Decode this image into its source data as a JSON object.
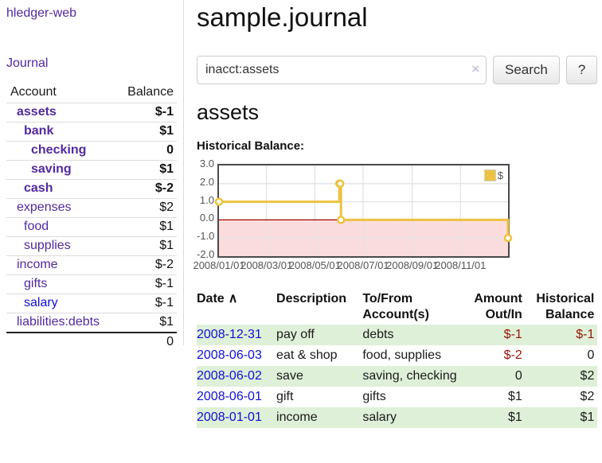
{
  "sidebar": {
    "brand": "hledger-web",
    "nav": {
      "journal": "Journal"
    },
    "table_headers": {
      "account": "Account",
      "balance": "Balance"
    },
    "accounts": [
      {
        "name": "assets",
        "indent": 1,
        "bold": true,
        "balance": "$-1",
        "neg": "strong"
      },
      {
        "name": "bank",
        "indent": 2,
        "bold": true,
        "balance": "$1"
      },
      {
        "name": "checking",
        "indent": 3,
        "bold": true,
        "balance": "0"
      },
      {
        "name": "saving",
        "indent": 3,
        "bold": true,
        "balance": "$1"
      },
      {
        "name": "cash",
        "indent": 2,
        "bold": true,
        "balance": "$-2",
        "neg": "strong"
      },
      {
        "name": "expenses",
        "indent": 1,
        "bold": false,
        "balance": "$2"
      },
      {
        "name": "food",
        "indent": 2,
        "bold": false,
        "balance": "$1"
      },
      {
        "name": "supplies",
        "indent": 2,
        "bold": false,
        "balance": "$1"
      },
      {
        "name": "income",
        "indent": 1,
        "bold": false,
        "balance": "$-2",
        "neg": "muted"
      },
      {
        "name": "gifts",
        "indent": 2,
        "bold": false,
        "balance": "$-1",
        "neg": "muted"
      },
      {
        "name": "salary",
        "indent": 2,
        "bold": false,
        "balance": "$-1",
        "neg": "muted",
        "link_color": "blue"
      },
      {
        "name": "liabilities:debts",
        "indent": 1,
        "bold": false,
        "balance": "$1"
      }
    ],
    "total": "0"
  },
  "header": {
    "title": "sample.journal"
  },
  "search": {
    "value": "inacct:assets",
    "clear_icon": "×",
    "button_label": "Search",
    "help_label": "?"
  },
  "account_page": {
    "heading": "assets",
    "chart_label": "Historical Balance:"
  },
  "chart_data": {
    "type": "line",
    "step": true,
    "title": "Historical Balance:",
    "legend": {
      "label": "$",
      "position": "top-right"
    },
    "series": [
      {
        "name": "$",
        "color": "#edc240",
        "points": [
          [
            "2008-01-01",
            1
          ],
          [
            "2008-06-01",
            2
          ],
          [
            "2008-06-02",
            2
          ],
          [
            "2008-06-03",
            0
          ],
          [
            "2008-12-31",
            -1
          ]
        ]
      }
    ],
    "x_range": [
      "2008-01-01",
      "2008-12-31"
    ],
    "x_tick_labels": [
      "2008/01/01",
      "2008/03/01",
      "2008/05/01",
      "2008/07/01",
      "2008/09/01",
      "2008/11/01"
    ],
    "y_ticks": [
      3.0,
      2.0,
      1.0,
      0.0,
      -1.0,
      -2.0
    ],
    "y_tick_labels": [
      "3.0",
      "2.0",
      "1.0",
      "0.0",
      "-1.0",
      "-2.0"
    ],
    "ylim": [
      -2,
      3
    ],
    "grid": true,
    "grid_color": "#e3e3e3",
    "negative_region": {
      "color": "#fbdcdc",
      "zero_line_color": "#a00000"
    }
  },
  "register": {
    "headers": {
      "date": "Date",
      "sort_icon": "∧",
      "description": "Description",
      "accounts": "To/From Account(s)",
      "amount": "Amount Out/In",
      "balance": "Historical Balance"
    },
    "rows": [
      {
        "date": "2008-12-31",
        "description": "pay off",
        "accounts": "debts",
        "amount": "$-1",
        "amount_neg": true,
        "balance": "$-1",
        "balance_neg": true
      },
      {
        "date": "2008-06-03",
        "description": "eat & shop",
        "accounts": "food, supplies",
        "amount": "$-2",
        "amount_neg": true,
        "balance": "0",
        "balance_neg": false
      },
      {
        "date": "2008-06-02",
        "description": "save",
        "accounts": "saving, checking",
        "amount": "0",
        "amount_neg": false,
        "balance": "$2",
        "balance_neg": false
      },
      {
        "date": "2008-06-01",
        "description": "gift",
        "accounts": "gifts",
        "amount": "$1",
        "amount_neg": false,
        "balance": "$2",
        "balance_neg": false
      },
      {
        "date": "2008-01-01",
        "description": "income",
        "accounts": "salary",
        "amount": "$1",
        "amount_neg": false,
        "balance": "$1",
        "balance_neg": false
      }
    ]
  }
}
